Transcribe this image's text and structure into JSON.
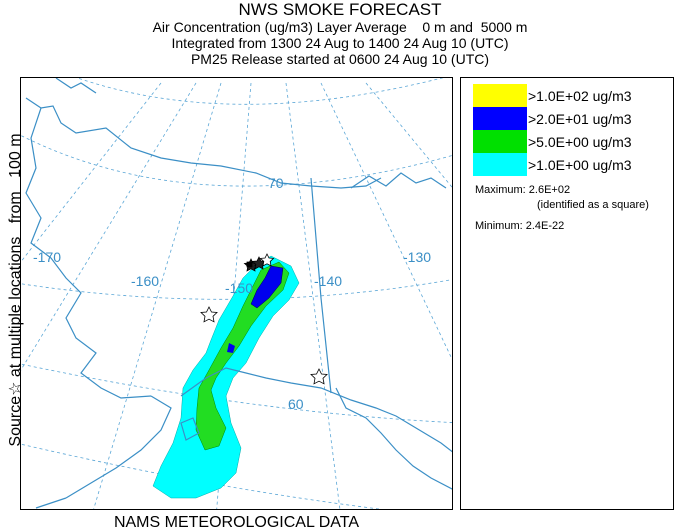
{
  "header": {
    "title": "NWS SMOKE FORECAST",
    "line1": "Air Concentration (ug/m3) Layer Average    0 m and  5000 m",
    "line2": "Integrated from 1300 24 Aug to 1400 24 Aug 10 (UTC)",
    "line3": "PM25 Release started at 0600 24 Aug 10 (UTC)"
  },
  "left_label": "Source☆ at multiple locations   from   100 m",
  "bottom_label": "NAMS METEOROLOGICAL DATA",
  "map": {
    "graticule_labels": {
      "lon_170": "-170",
      "lon_160": "-160",
      "lon_150": "-150",
      "lon_140": "-140",
      "lon_130": "-130",
      "lat_70": "70",
      "lat_60": "60"
    },
    "colors": {
      "coast": "#3b8fc6",
      "grid": "#5aa6d6"
    }
  },
  "legend": {
    "items": [
      {
        "label": ">1.0E+02 ug/m3",
        "color": "#ffff00"
      },
      {
        "label": ">2.0E+01 ug/m3",
        "color": "#0000ff"
      },
      {
        "label": ">5.0E+00 ug/m3",
        "color": "#00e000"
      },
      {
        "label": ">1.0E+00 ug/m3",
        "color": "#00ffff"
      }
    ],
    "maximum": "Maximum: 2.6E+02",
    "maximum_note": "(identified as a square)",
    "minimum": "Minimum: 2.4E-22"
  }
}
